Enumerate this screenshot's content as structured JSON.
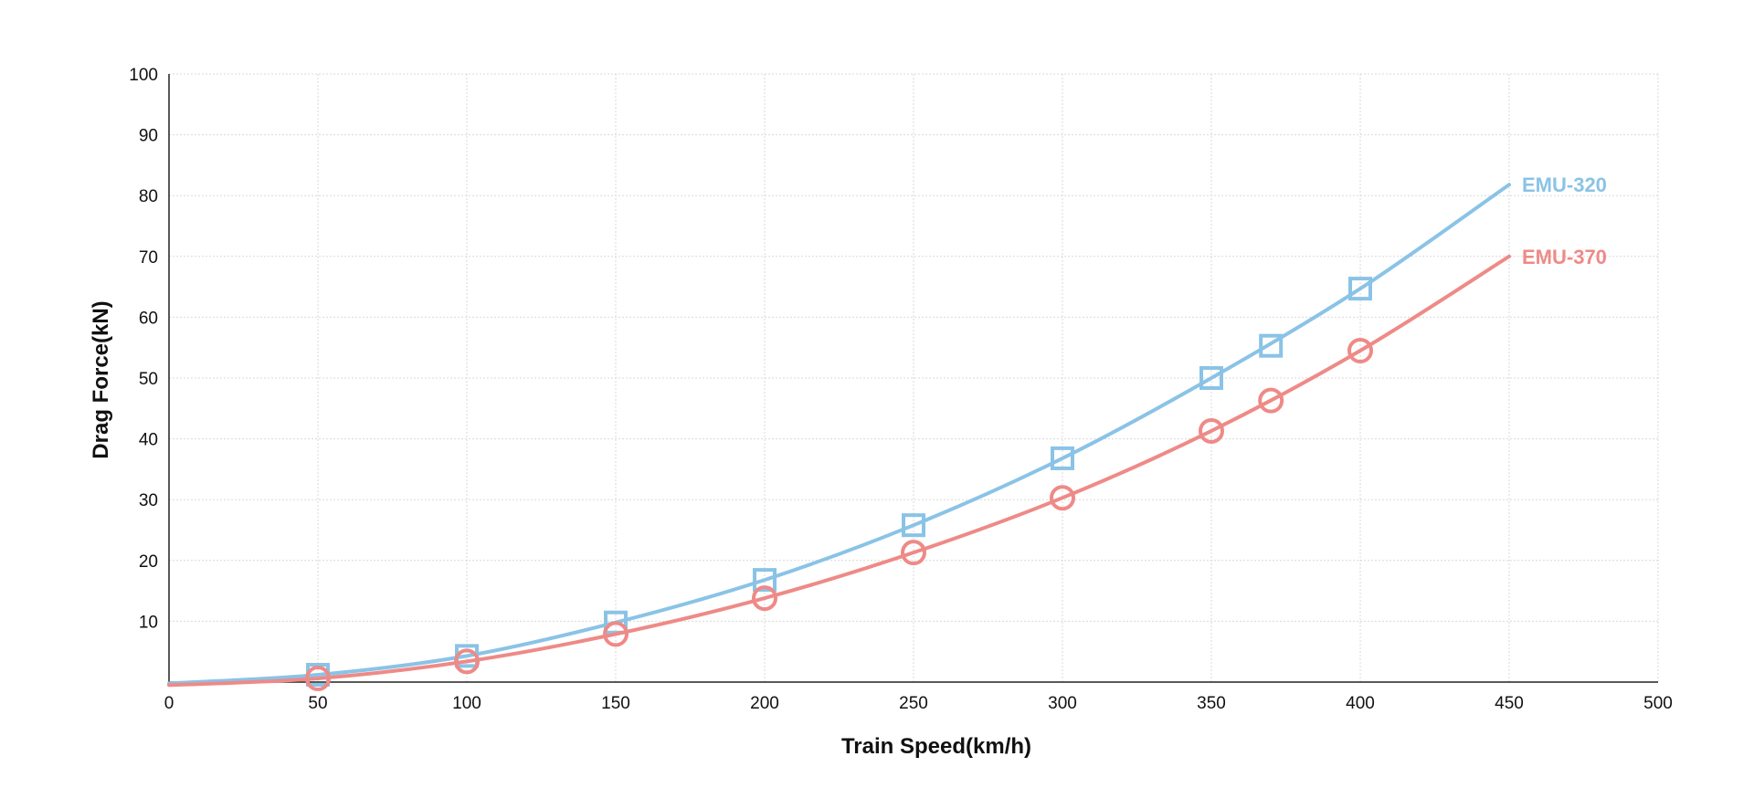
{
  "chart_data": {
    "type": "line",
    "title": "",
    "xlabel": "Train Speed(km/h)",
    "ylabel": "Drag Force(kN)",
    "xlim": [
      0,
      500
    ],
    "ylim": [
      0,
      100
    ],
    "x_ticks": [
      0,
      50,
      100,
      150,
      200,
      250,
      300,
      350,
      400,
      450,
      500
    ],
    "y_ticks": [
      10,
      20,
      30,
      40,
      50,
      60,
      70,
      80,
      90,
      100
    ],
    "grid": true,
    "legend": "inline labels at line ends",
    "series": [
      {
        "name": "EMU-320",
        "color": "#8ac3e6",
        "marker": "square",
        "markers": {
          "x": [
            50,
            100,
            150,
            200,
            250,
            300,
            350,
            370,
            400
          ],
          "y": [
            1.2,
            4.3,
            9.8,
            16.8,
            25.8,
            36.8,
            50.0,
            55.3,
            64.7
          ]
        },
        "curve": {
          "x": [
            0,
            50,
            100,
            150,
            200,
            250,
            300,
            350,
            400,
            450
          ],
          "y": [
            -0.2,
            1.2,
            4.3,
            9.8,
            16.8,
            25.8,
            36.8,
            50.0,
            64.7,
            81.8
          ]
        }
      },
      {
        "name": "EMU-370",
        "color": "#ee8a87",
        "marker": "circle",
        "markers": {
          "x": [
            50,
            100,
            150,
            200,
            250,
            300,
            350,
            370,
            400
          ],
          "y": [
            0.6,
            3.4,
            7.9,
            13.8,
            21.3,
            30.3,
            41.3,
            46.3,
            54.5
          ]
        },
        "curve": {
          "x": [
            0,
            50,
            100,
            150,
            200,
            250,
            300,
            350,
            400,
            450
          ],
          "y": [
            -0.5,
            0.6,
            3.4,
            7.9,
            13.8,
            21.3,
            30.3,
            41.3,
            54.5,
            70.0
          ]
        }
      }
    ]
  }
}
